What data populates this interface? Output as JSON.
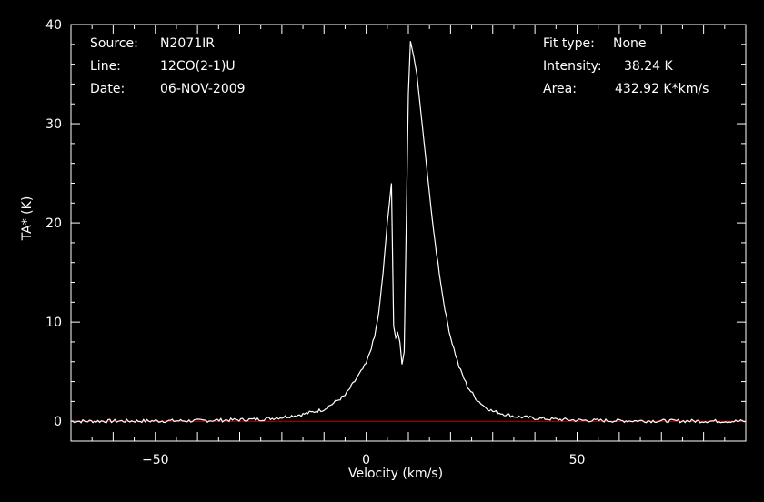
{
  "info_left": {
    "source_label": "Source:",
    "source_value": "N2071IR",
    "line_label": "Line:",
    "line_value": "12CO(2-1)U",
    "date_label": "Date:",
    "date_value": "06-NOV-2009"
  },
  "info_right": {
    "fit_label": "Fit type:",
    "fit_value": "None",
    "intensity_label": "Intensity:",
    "intensity_value": "38.24 K",
    "area_label": "Area:",
    "area_value": "432.92 K*km/s"
  },
  "chart_data": {
    "type": "line",
    "title": "",
    "xlabel": "Velocity (km/s)",
    "ylabel": "TA* (K)",
    "xlim": [
      -70,
      90
    ],
    "ylim": [
      -2,
      40
    ],
    "x_ticks": [
      -50,
      0,
      50
    ],
    "y_ticks": [
      0,
      10,
      20,
      30,
      40
    ],
    "grid": false,
    "baseline": {
      "y": 0,
      "color": "#cc0000"
    },
    "line_color": "#ffffff",
    "background": "#000000",
    "series": [
      {
        "x": [
          -70,
          -40,
          -25,
          -20,
          -15,
          -10,
          -5,
          -2,
          0,
          2,
          3,
          4,
          5,
          6,
          6.5,
          7.0,
          7.5,
          8,
          8.5,
          9,
          9.5,
          10,
          10.5,
          11,
          12,
          13,
          14,
          15,
          16,
          17,
          18,
          19,
          20,
          22,
          24,
          26,
          28,
          30,
          35,
          40,
          50,
          60,
          90
        ],
        "y": [
          0,
          0.05,
          0.2,
          0.4,
          0.7,
          1.2,
          2.6,
          4.5,
          5.8,
          8.5,
          11,
          15,
          20,
          24,
          9.5,
          8.3,
          8.9,
          8.0,
          5.6,
          7.0,
          20,
          33,
          38.24,
          37.5,
          35,
          31,
          27,
          23,
          19,
          16,
          13,
          10.5,
          8.5,
          5.5,
          3.5,
          2.3,
          1.5,
          1.0,
          0.5,
          0.3,
          0.1,
          0.05,
          0
        ]
      }
    ]
  }
}
